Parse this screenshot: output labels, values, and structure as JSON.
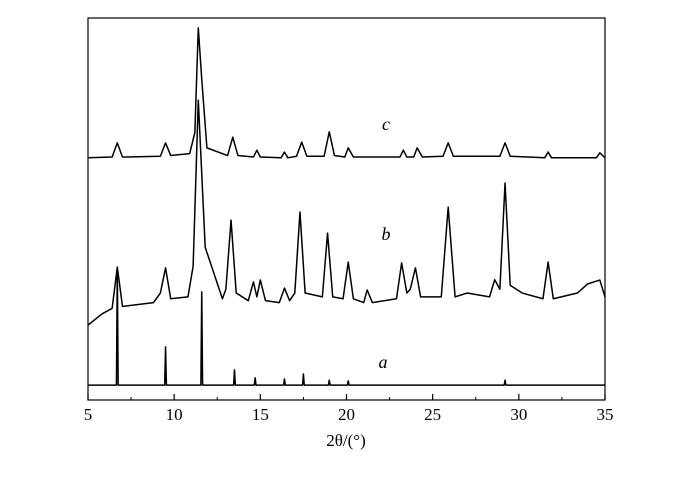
{
  "chart_data": {
    "type": "line",
    "xlabel": "2θ/(°)",
    "xlim": [
      5,
      35
    ],
    "xticks": [
      5,
      10,
      15,
      20,
      25,
      30,
      35
    ],
    "ylim": [
      0,
      100
    ],
    "color": "#000000",
    "series": [
      {
        "name": "a",
        "color": "#000000",
        "x": [
          5,
          6.65,
          6.7,
          6.75,
          9.45,
          9.5,
          9.55,
          11.55,
          11.6,
          11.65,
          13.45,
          13.5,
          13.55,
          14.65,
          14.7,
          14.75,
          16.35,
          16.4,
          16.45,
          17.45,
          17.5,
          17.55,
          18.95,
          19.0,
          19.05,
          20.05,
          20.1,
          20.15,
          29.15,
          29.2,
          29.25,
          35
        ],
        "values": [
          3.9,
          3.9,
          34.6,
          3.9,
          3.9,
          13.9,
          3.9,
          3.9,
          28.3,
          3.9,
          3.9,
          7.9,
          3.9,
          3.9,
          5.8,
          3.9,
          3.9,
          5.5,
          3.9,
          3.9,
          6.8,
          3.9,
          3.9,
          5.2,
          3.9,
          3.9,
          5.0,
          3.9,
          3.9,
          5.2,
          3.9,
          3.9
        ]
      },
      {
        "name": "b",
        "color": "#000000",
        "x": [
          5,
          5.8,
          6.4,
          6.7,
          7.0,
          8.8,
          9.2,
          9.5,
          9.8,
          10.8,
          11.1,
          11.4,
          11.8,
          12.8,
          13.0,
          13.3,
          13.6,
          14.3,
          14.6,
          14.8,
          15.0,
          15.3,
          16.1,
          16.4,
          16.7,
          17.0,
          17.3,
          17.6,
          18.6,
          18.9,
          19.2,
          19.8,
          20.1,
          20.4,
          21.0,
          21.2,
          21.5,
          22.9,
          23.2,
          23.5,
          23.7,
          24.0,
          24.3,
          25.5,
          25.9,
          26.3,
          27.0,
          28.3,
          28.6,
          28.9,
          29.2,
          29.5,
          30.2,
          31.4,
          31.7,
          32.0,
          33.4,
          34.0,
          34.7,
          35
        ],
        "values": [
          19.6,
          22.5,
          24,
          34.8,
          24.5,
          25.5,
          28,
          34.6,
          26.5,
          27,
          35,
          78.5,
          40,
          26.5,
          29,
          47.1,
          28,
          26,
          30.9,
          27,
          31.4,
          26,
          25.5,
          29.3,
          26,
          28,
          49.2,
          28,
          27,
          43.7,
          27,
          26.5,
          36.1,
          26.5,
          25.5,
          28.8,
          25.5,
          26.5,
          35.9,
          28,
          29,
          34.6,
          27,
          27,
          50.5,
          27,
          28,
          27,
          31.5,
          29,
          56.8,
          30,
          28,
          26.5,
          36.1,
          26.5,
          28,
          30.4,
          31.4,
          27
        ]
      },
      {
        "name": "c",
        "color": "#000000",
        "x": [
          5,
          6.4,
          6.7,
          7.0,
          9.2,
          9.5,
          9.8,
          10.9,
          11.2,
          11.4,
          11.6,
          11.9,
          13.1,
          13.4,
          13.7,
          14.6,
          14.8,
          15.0,
          16.2,
          16.4,
          16.6,
          17.1,
          17.4,
          17.7,
          18.7,
          19.0,
          19.3,
          19.9,
          20.1,
          20.4,
          23.1,
          23.3,
          23.5,
          23.9,
          24.1,
          24.4,
          25.6,
          25.9,
          26.2,
          28.9,
          29.2,
          29.5,
          31.5,
          31.7,
          31.9,
          34.5,
          34.7,
          35
        ],
        "values": [
          63.4,
          63.6,
          67.3,
          63.6,
          63.8,
          67.3,
          64,
          64.5,
          70,
          97.4,
          84,
          66,
          64,
          68.8,
          64,
          63.6,
          65.4,
          63.6,
          63.4,
          64.9,
          63.4,
          63.8,
          67.5,
          63.8,
          63.8,
          70.2,
          64,
          63.6,
          66.0,
          63.6,
          63.6,
          65.4,
          63.6,
          63.6,
          66.0,
          63.6,
          63.8,
          67.3,
          63.8,
          63.8,
          67.3,
          63.8,
          63.4,
          64.9,
          63.4,
          63.4,
          64.7,
          63.4
        ]
      }
    ]
  }
}
